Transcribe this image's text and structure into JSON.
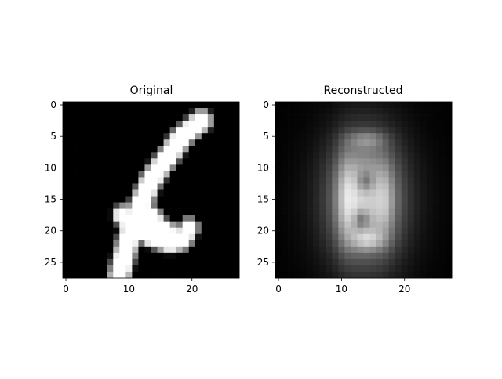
{
  "chart_data": [
    {
      "type": "heatmap",
      "title": "Original",
      "xlabel": "",
      "ylabel": "",
      "xlim": [
        -0.5,
        27.5
      ],
      "ylim": [
        27.5,
        -0.5
      ],
      "x_ticks": [
        0,
        10,
        20
      ],
      "y_ticks": [
        0,
        5,
        10,
        15,
        20,
        25
      ],
      "colormap": "gray",
      "grid": false,
      "strokes": [
        {
          "path": [
            [
              2.5,
              21.5
            ],
            [
              5,
              18.5
            ],
            [
              8.5,
              16
            ],
            [
              12,
              13.5
            ],
            [
              16.5,
              11.5
            ],
            [
              21,
              10
            ],
            [
              23,
              9.5
            ],
            [
              25,
              9
            ],
            [
              27,
              8.5
            ]
          ],
          "width": 2.3
        },
        {
          "path": [
            [
              17.5,
              9
            ],
            [
              19.5,
              11
            ],
            [
              21,
              13.5
            ],
            [
              22,
              16.5
            ],
            [
              21.5,
              18.5
            ],
            [
              19.5,
              19.5
            ]
          ],
          "width": 2.0
        },
        {
          "path": [
            [
              21.5,
              18
            ],
            [
              20.5,
              15.5
            ],
            [
              18.5,
              14
            ],
            [
              17.5,
              13.5
            ]
          ],
          "width": 2.0
        },
        {
          "path": [
            [
              18.5,
              12
            ],
            [
              19.5,
              16
            ]
          ],
          "width": 1.4
        }
      ]
    },
    {
      "type": "heatmap",
      "title": "Reconstructed",
      "xlabel": "",
      "ylabel": "",
      "xlim": [
        -0.5,
        27.5
      ],
      "ylim": [
        27.5,
        -0.5
      ],
      "x_ticks": [
        0,
        10,
        20
      ],
      "y_ticks": [
        0,
        5,
        10,
        15,
        20,
        25
      ],
      "colormap": "gray",
      "grid": false,
      "blobs": [
        {
          "cx": 13.8,
          "cy": 15,
          "rx": 8.5,
          "ry": 12.5,
          "amp": 0.2
        },
        {
          "cx": 13.8,
          "cy": 15,
          "rx": 5.2,
          "ry": 9.5,
          "amp": 0.62
        },
        {
          "cx": 10.8,
          "cy": 15,
          "rx": 1.6,
          "ry": 7.5,
          "amp": 0.28
        },
        {
          "cx": 17,
          "cy": 15.5,
          "rx": 1.4,
          "ry": 6.0,
          "amp": 0.2
        },
        {
          "cx": 14,
          "cy": 5.5,
          "rx": 3.0,
          "ry": 1.4,
          "amp": 0.25
        },
        {
          "cx": 14.2,
          "cy": 21.5,
          "rx": 2.6,
          "ry": 1.6,
          "amp": 0.32
        },
        {
          "cx": 13.8,
          "cy": 12.2,
          "rx": 1.3,
          "ry": 1.6,
          "amp": -0.3
        },
        {
          "cx": 13.2,
          "cy": 18.2,
          "rx": 1.2,
          "ry": 1.5,
          "amp": -0.3
        }
      ]
    }
  ]
}
